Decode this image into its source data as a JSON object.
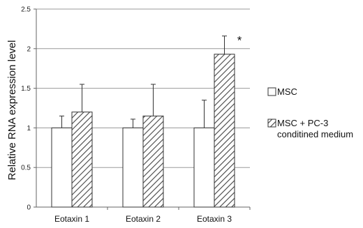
{
  "chart_data": {
    "type": "bar",
    "title": "",
    "xlabel": "",
    "ylabel": "Relative RNA expression level",
    "ylim": [
      0,
      2.5
    ],
    "yticks": [
      0,
      0.5,
      1,
      1.5,
      2,
      2.5
    ],
    "ytick_labels": [
      "0",
      "0.5",
      "1",
      "1.5",
      "2",
      "2.5"
    ],
    "grid": true,
    "legend_position": "right",
    "categories": [
      "Eotaxin 1",
      "Eotaxin 2",
      "Eotaxin 3"
    ],
    "series": [
      {
        "name": "MSC",
        "values": [
          1.0,
          1.0,
          1.0
        ],
        "error": [
          0.15,
          0.11,
          0.35
        ],
        "fill": "white"
      },
      {
        "name_lines": [
          "MSC + PC-3",
          "conditined medium"
        ],
        "values": [
          1.2,
          1.15,
          1.93
        ],
        "error": [
          0.35,
          0.4,
          0.23
        ],
        "fill": "hatched"
      }
    ],
    "annotations": [
      {
        "text": "*",
        "category": 2,
        "series": 1
      }
    ],
    "colors": {
      "grid": "#9a9a9a",
      "axis": "#666666",
      "bar_stroke": "#333333",
      "hatch": "#444444"
    }
  }
}
